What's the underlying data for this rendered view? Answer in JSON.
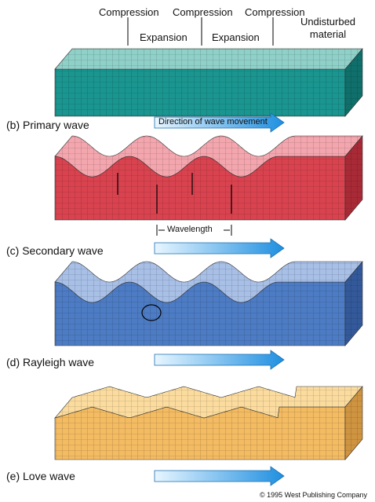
{
  "top_labels": {
    "compression": [
      "Compression",
      "Compression",
      "Compression"
    ],
    "expansion": [
      "Expansion",
      "Expansion"
    ],
    "undisturbed": "Undisturbed material"
  },
  "panels": [
    {
      "label": "(b) Primary wave",
      "arrow_label": "Direction of wave movement"
    },
    {
      "label": "(c) Secondary wave",
      "annotation": "Wavelength"
    },
    {
      "label": "(d) Rayleigh wave"
    },
    {
      "label": "(e) Love wave"
    }
  ],
  "credit": "© 1995 West Publishing Company"
}
